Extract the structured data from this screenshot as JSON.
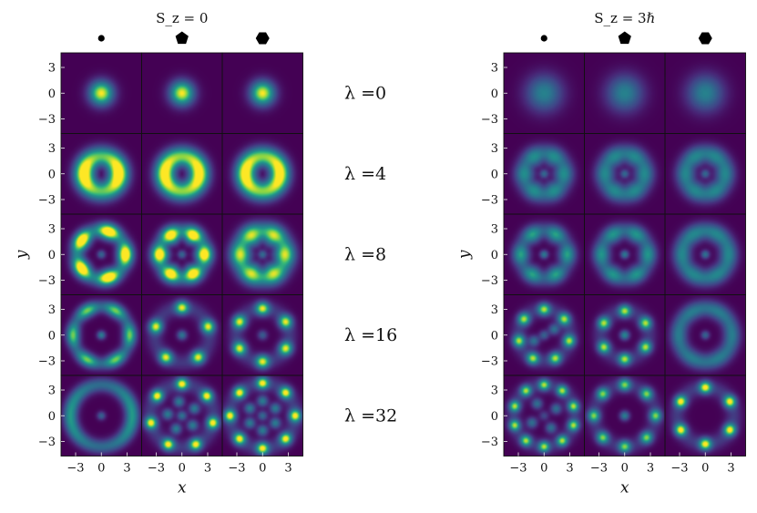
{
  "chart_data": [
    {
      "type": "heatmap",
      "title": "S_z = 0",
      "columns": [
        {
          "symbol": "dot",
          "shape": "circle"
        },
        {
          "symbol": "pentagon",
          "shape": "pentagon"
        },
        {
          "symbol": "hexagon",
          "shape": "hexagon"
        }
      ],
      "rows": [
        {
          "label": "λ =0",
          "lambda": 0
        },
        {
          "label": "λ =4",
          "lambda": 4
        },
        {
          "label": "λ =8",
          "lambda": 8
        },
        {
          "label": "λ =16",
          "lambda": 16
        },
        {
          "label": "λ =32",
          "lambda": 32
        }
      ],
      "xlabel": "x",
      "ylabel": "y",
      "xlim": [
        -4.7,
        4.7
      ],
      "ylim": [
        -4.7,
        4.7
      ],
      "xticks": [
        "−3",
        "0",
        "3"
      ],
      "yticks": [
        "3",
        "0",
        "−3"
      ],
      "colormap": "viridis",
      "panels": [
        [
          {
            "kind": "gauss",
            "r0": 0,
            "w": 1.0,
            "m": 0,
            "amp": 1.0
          },
          {
            "kind": "gauss",
            "r0": 0,
            "w": 1.0,
            "m": 0,
            "amp": 1.0
          },
          {
            "kind": "gauss",
            "r0": 0,
            "w": 1.0,
            "m": 0,
            "amp": 1.0
          }
        ],
        [
          {
            "kind": "ring",
            "r0": 2.0,
            "w": 0.85,
            "m": 2,
            "mod": 0.18,
            "amp": 1.0
          },
          {
            "kind": "ring",
            "r0": 2.0,
            "w": 0.85,
            "m": 2,
            "mod": 0.12,
            "amp": 1.0
          },
          {
            "kind": "ring",
            "r0": 2.0,
            "w": 0.85,
            "m": 2,
            "mod": 0.12,
            "amp": 1.0
          }
        ],
        [
          {
            "kind": "ring",
            "r0": 2.8,
            "w": 0.65,
            "m": 5,
            "mod": 0.35,
            "center": 0.45,
            "amp": 0.9
          },
          {
            "kind": "ring",
            "r0": 2.6,
            "w": 0.7,
            "m": 6,
            "mod": 0.3,
            "center": 0.45,
            "amp": 0.9
          },
          {
            "kind": "ring",
            "r0": 2.6,
            "w": 0.85,
            "m": 6,
            "mod": 0.15,
            "center": 0.5,
            "amp": 0.85
          }
        ],
        [
          {
            "kind": "ring",
            "r0": 3.3,
            "w": 0.55,
            "m": 6,
            "mod": 0.3,
            "center": 0.8,
            "amp": 0.65
          },
          {
            "kind": "spots",
            "n": 5,
            "r0": 3.2,
            "w": 0.55,
            "center": 0.6,
            "amp": 0.8
          },
          {
            "kind": "spots",
            "n": 6,
            "r0": 3.1,
            "w": 0.55,
            "center": 0.45,
            "amp": 0.8
          }
        ],
        [
          {
            "kind": "ring",
            "r0": 3.6,
            "w": 0.6,
            "m": 2,
            "mod": 0.2,
            "center": 0.7,
            "amp": 0.55
          },
          {
            "kind": "spots",
            "n": 7,
            "r0": 3.7,
            "w": 0.5,
            "center": 0.55,
            "inner": 5,
            "amp": 0.85
          },
          {
            "kind": "spots",
            "n": 8,
            "r0": 3.8,
            "w": 0.5,
            "center": 0.5,
            "inner": 6,
            "amp": 0.85
          }
        ]
      ]
    },
    {
      "type": "heatmap",
      "title": "S_z = 3ℏ",
      "columns": [
        {
          "symbol": "dot",
          "shape": "circle"
        },
        {
          "symbol": "pentagon",
          "shape": "pentagon"
        },
        {
          "symbol": "hexagon",
          "shape": "hexagon"
        }
      ],
      "rows": [
        {
          "label": "λ =0",
          "lambda": 0
        },
        {
          "label": "λ =4",
          "lambda": 4
        },
        {
          "label": "λ =8",
          "lambda": 8
        },
        {
          "label": "λ =16",
          "lambda": 16
        },
        {
          "label": "λ =32",
          "lambda": 32
        }
      ],
      "xlabel": "x",
      "ylabel": "y",
      "xlim": [
        -4.7,
        4.7
      ],
      "ylim": [
        -4.7,
        4.7
      ],
      "xticks": [
        "−3",
        "0",
        "3"
      ],
      "yticks": [
        "3",
        "0",
        "−3"
      ],
      "colormap": "viridis",
      "panels": [
        [
          {
            "kind": "gauss",
            "r0": 0,
            "w": 1.5,
            "m": 0,
            "amp": 0.55
          },
          {
            "kind": "gauss",
            "r0": 0,
            "w": 1.5,
            "m": 0,
            "amp": 0.55
          },
          {
            "kind": "gauss",
            "r0": 0,
            "w": 1.5,
            "m": 0,
            "amp": 0.55
          }
        ],
        [
          {
            "kind": "ring",
            "r0": 2.3,
            "w": 0.8,
            "m": 6,
            "mod": 0.12,
            "center": 0.75,
            "amp": 0.55
          },
          {
            "kind": "ring",
            "r0": 2.3,
            "w": 0.8,
            "m": 6,
            "mod": 0.08,
            "center": 0.75,
            "amp": 0.55
          },
          {
            "kind": "ring",
            "r0": 2.3,
            "w": 0.8,
            "m": 6,
            "mod": 0.06,
            "center": 0.75,
            "amp": 0.55
          }
        ],
        [
          {
            "kind": "ring",
            "r0": 2.7,
            "w": 0.7,
            "m": 6,
            "mod": 0.25,
            "center": 0.9,
            "amp": 0.55
          },
          {
            "kind": "ring",
            "r0": 2.7,
            "w": 0.7,
            "m": 6,
            "mod": 0.18,
            "center": 0.9,
            "amp": 0.55
          },
          {
            "kind": "ring",
            "r0": 2.7,
            "w": 0.75,
            "m": 6,
            "mod": 0.06,
            "center": 0.85,
            "amp": 0.55
          }
        ],
        [
          {
            "kind": "spots",
            "n": 7,
            "r0": 3.0,
            "w": 0.5,
            "center": 0.5,
            "inner": 2,
            "amp": 0.75
          },
          {
            "kind": "spots",
            "n": 6,
            "r0": 2.8,
            "w": 0.5,
            "center": 0.75,
            "amp": 0.75
          },
          {
            "kind": "ring",
            "r0": 3.1,
            "w": 0.7,
            "m": 6,
            "mod": 0.05,
            "center": 0.8,
            "amp": 0.5
          }
        ],
        [
          {
            "kind": "spots",
            "n": 10,
            "r0": 3.6,
            "w": 0.45,
            "center": 0.35,
            "inner": 4,
            "amp": 0.75
          },
          {
            "kind": "spots",
            "n": 8,
            "r0": 3.6,
            "w": 0.5,
            "center": 0.75,
            "amp": 0.7
          },
          {
            "kind": "spots",
            "n": 6,
            "r0": 3.3,
            "w": 0.5,
            "center": 0.0,
            "amp": 0.85
          }
        ]
      ]
    }
  ]
}
